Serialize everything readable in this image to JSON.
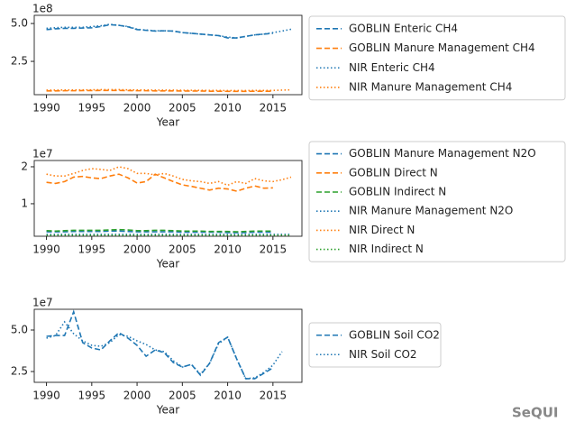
{
  "chart_data": [
    {
      "type": "line",
      "offset_text": "1e8",
      "xlabel": "Year",
      "legend": "right",
      "x": [
        1990,
        1991,
        1992,
        1993,
        1994,
        1995,
        1996,
        1997,
        1998,
        1999,
        2000,
        2001,
        2002,
        2003,
        2004,
        2005,
        2006,
        2007,
        2008,
        2009,
        2010,
        2011,
        2012,
        2013,
        2014,
        2015,
        2016,
        2017
      ],
      "xlim": [
        1988.65,
        2018.2
      ],
      "xticks": [
        1990,
        1995,
        2000,
        2005,
        2010,
        2015
      ],
      "ylim": [
        0.3,
        5.54
      ],
      "yticks": [
        {
          "value": 5,
          "label": "5.0"
        },
        {
          "value": 2.5,
          "label": "2.5"
        }
      ],
      "series": [
        {
          "name": "GOBLIN Enteric CH4",
          "color": "#1f77b4",
          "linestyle": "dashed",
          "values": [
            4.6,
            4.65,
            4.68,
            4.68,
            4.7,
            4.72,
            4.8,
            4.92,
            4.88,
            4.78,
            4.6,
            4.55,
            4.5,
            4.52,
            4.5,
            4.4,
            4.35,
            4.3,
            4.25,
            4.2,
            4.05,
            4.05,
            4.15,
            4.25,
            4.3,
            4.35,
            null,
            null
          ]
        },
        {
          "name": "GOBLIN Manure Management CH4",
          "color": "#ff7f0e",
          "linestyle": "dashed",
          "values": [
            0.55,
            0.55,
            0.56,
            0.56,
            0.57,
            0.57,
            0.58,
            0.58,
            0.58,
            0.57,
            0.56,
            0.56,
            0.55,
            0.55,
            0.55,
            0.54,
            0.54,
            0.54,
            0.53,
            0.53,
            0.52,
            0.52,
            0.52,
            0.53,
            0.53,
            0.53,
            null,
            null
          ]
        },
        {
          "name": "NIR Enteric CH4",
          "color": "#1f77b4",
          "linestyle": "dotted",
          "values": [
            4.68,
            4.72,
            4.75,
            4.75,
            4.75,
            4.8,
            4.85,
            4.95,
            4.88,
            4.8,
            4.62,
            4.57,
            4.52,
            4.52,
            4.5,
            4.4,
            4.35,
            4.3,
            4.25,
            4.2,
            4.1,
            4.05,
            4.15,
            4.25,
            4.3,
            4.4,
            4.5,
            4.62
          ]
        },
        {
          "name": "NIR Manure Management CH4",
          "color": "#ff7f0e",
          "linestyle": "dotted",
          "values": [
            0.6,
            0.6,
            0.61,
            0.61,
            0.62,
            0.62,
            0.63,
            0.63,
            0.63,
            0.62,
            0.61,
            0.61,
            0.6,
            0.6,
            0.6,
            0.59,
            0.59,
            0.59,
            0.58,
            0.58,
            0.57,
            0.57,
            0.57,
            0.58,
            0.58,
            0.58,
            0.6,
            0.62
          ]
        }
      ]
    },
    {
      "type": "line",
      "offset_text": "1e7",
      "xlabel": "Year",
      "legend": "right",
      "x": [
        1990,
        1991,
        1992,
        1993,
        1994,
        1995,
        1996,
        1997,
        1998,
        1999,
        2000,
        2001,
        2002,
        2003,
        2004,
        2005,
        2006,
        2007,
        2008,
        2009,
        2010,
        2011,
        2012,
        2013,
        2014,
        2015,
        2016,
        2017
      ],
      "xlim": [
        1988.65,
        2018.2
      ],
      "xticks": [
        1990,
        1995,
        2000,
        2005,
        2010,
        2015
      ],
      "ylim": [
        0.12,
        2.17
      ],
      "yticks": [
        2,
        1
      ],
      "series": [
        {
          "name": "GOBLIN Manure Management N2O",
          "color": "#1f77b4",
          "linestyle": "dashed",
          "values": [
            0.24,
            0.24,
            0.24,
            0.25,
            0.25,
            0.25,
            0.25,
            0.26,
            0.26,
            0.25,
            0.24,
            0.24,
            0.24,
            0.24,
            0.24,
            0.23,
            0.23,
            0.23,
            0.23,
            0.23,
            0.22,
            0.22,
            0.22,
            0.23,
            0.23,
            0.23,
            null,
            null
          ]
        },
        {
          "name": "GOBLIN Direct N",
          "color": "#ff7f0e",
          "linestyle": "dashed",
          "values": [
            1.58,
            1.55,
            1.6,
            1.72,
            1.74,
            1.7,
            1.68,
            1.75,
            1.8,
            1.7,
            1.56,
            1.6,
            1.8,
            1.7,
            1.6,
            1.51,
            1.47,
            1.42,
            1.37,
            1.42,
            1.4,
            1.34,
            1.42,
            1.48,
            1.42,
            1.43,
            null,
            null
          ]
        },
        {
          "name": "GOBLIN Indirect N",
          "color": "#2ca02c",
          "linestyle": "dashed",
          "values": [
            0.27,
            0.26,
            0.27,
            0.28,
            0.28,
            0.28,
            0.28,
            0.29,
            0.3,
            0.29,
            0.27,
            0.27,
            0.28,
            0.28,
            0.27,
            0.26,
            0.26,
            0.26,
            0.25,
            0.25,
            0.25,
            0.24,
            0.25,
            0.26,
            0.26,
            0.26,
            null,
            null
          ]
        },
        {
          "name": "NIR Manure Management N2O",
          "color": "#1f77b4",
          "linestyle": "dotted",
          "values": [
            0.17,
            0.17,
            0.17,
            0.17,
            0.17,
            0.17,
            0.17,
            0.17,
            0.17,
            0.17,
            0.17,
            0.17,
            0.17,
            0.17,
            0.17,
            0.17,
            0.17,
            0.17,
            0.17,
            0.17,
            0.17,
            0.17,
            0.17,
            0.17,
            0.17,
            0.17,
            0.17,
            0.17
          ]
        },
        {
          "name": "NIR Direct N",
          "color": "#ff7f0e",
          "linestyle": "dotted",
          "values": [
            1.8,
            1.75,
            1.75,
            1.82,
            1.9,
            1.95,
            1.93,
            1.9,
            2.0,
            1.95,
            1.82,
            1.82,
            1.78,
            1.82,
            1.75,
            1.66,
            1.62,
            1.6,
            1.55,
            1.6,
            1.5,
            1.6,
            1.55,
            1.68,
            1.62,
            1.6,
            1.65,
            1.72
          ]
        },
        {
          "name": "NIR Indirect N",
          "color": "#2ca02c",
          "linestyle": "dotted",
          "values": [
            0.15,
            0.15,
            0.15,
            0.15,
            0.15,
            0.15,
            0.15,
            0.15,
            0.15,
            0.15,
            0.15,
            0.15,
            0.15,
            0.15,
            0.15,
            0.15,
            0.15,
            0.15,
            0.15,
            0.15,
            0.15,
            0.15,
            0.15,
            0.15,
            0.15,
            0.15,
            0.15,
            0.15
          ]
        }
      ]
    },
    {
      "type": "line",
      "offset_text": "1e7",
      "xlabel": "Year",
      "legend": "right",
      "x": [
        1990,
        1991,
        1992,
        1993,
        1994,
        1995,
        1996,
        1997,
        1998,
        1999,
        2000,
        2001,
        2002,
        2003,
        2004,
        2005,
        2006,
        2007,
        2008,
        2009,
        2010,
        2011,
        2012,
        2013,
        2014,
        2015,
        2016
      ],
      "xlim": [
        1988.65,
        2018.2
      ],
      "xticks": [
        1990,
        1995,
        2000,
        2005,
        2010,
        2015
      ],
      "ylim": [
        1.85,
        6.25
      ],
      "yticks": [
        {
          "value": 5,
          "label": "5.0"
        },
        {
          "value": 2.5,
          "label": "2.5"
        }
      ],
      "series": [
        {
          "name": "GOBLIN Soil CO2",
          "color": "#1f77b4",
          "linestyle": "dashed",
          "values": [
            4.62,
            4.67,
            4.67,
            6.1,
            4.24,
            3.92,
            3.8,
            4.35,
            4.84,
            4.51,
            4.08,
            3.42,
            3.8,
            3.64,
            3.04,
            2.77,
            2.93,
            2.28,
            2.99,
            4.24,
            4.57,
            3.26,
            2.07,
            2.07,
            2.4,
            2.72,
            null
          ]
        },
        {
          "name": "NIR Soil CO2",
          "color": "#1f77b4",
          "linestyle": "dotted",
          "values": [
            4.51,
            4.67,
            5.49,
            4.78,
            4.35,
            4.08,
            4.02,
            4.24,
            4.73,
            4.62,
            4.35,
            4.13,
            3.8,
            3.7,
            3.15,
            2.77,
            2.93,
            2.34,
            2.99,
            4.18,
            4.57,
            3.26,
            2.07,
            2.12,
            2.45,
            2.88,
            3.7
          ]
        }
      ]
    }
  ],
  "watermark": "SeQUI"
}
